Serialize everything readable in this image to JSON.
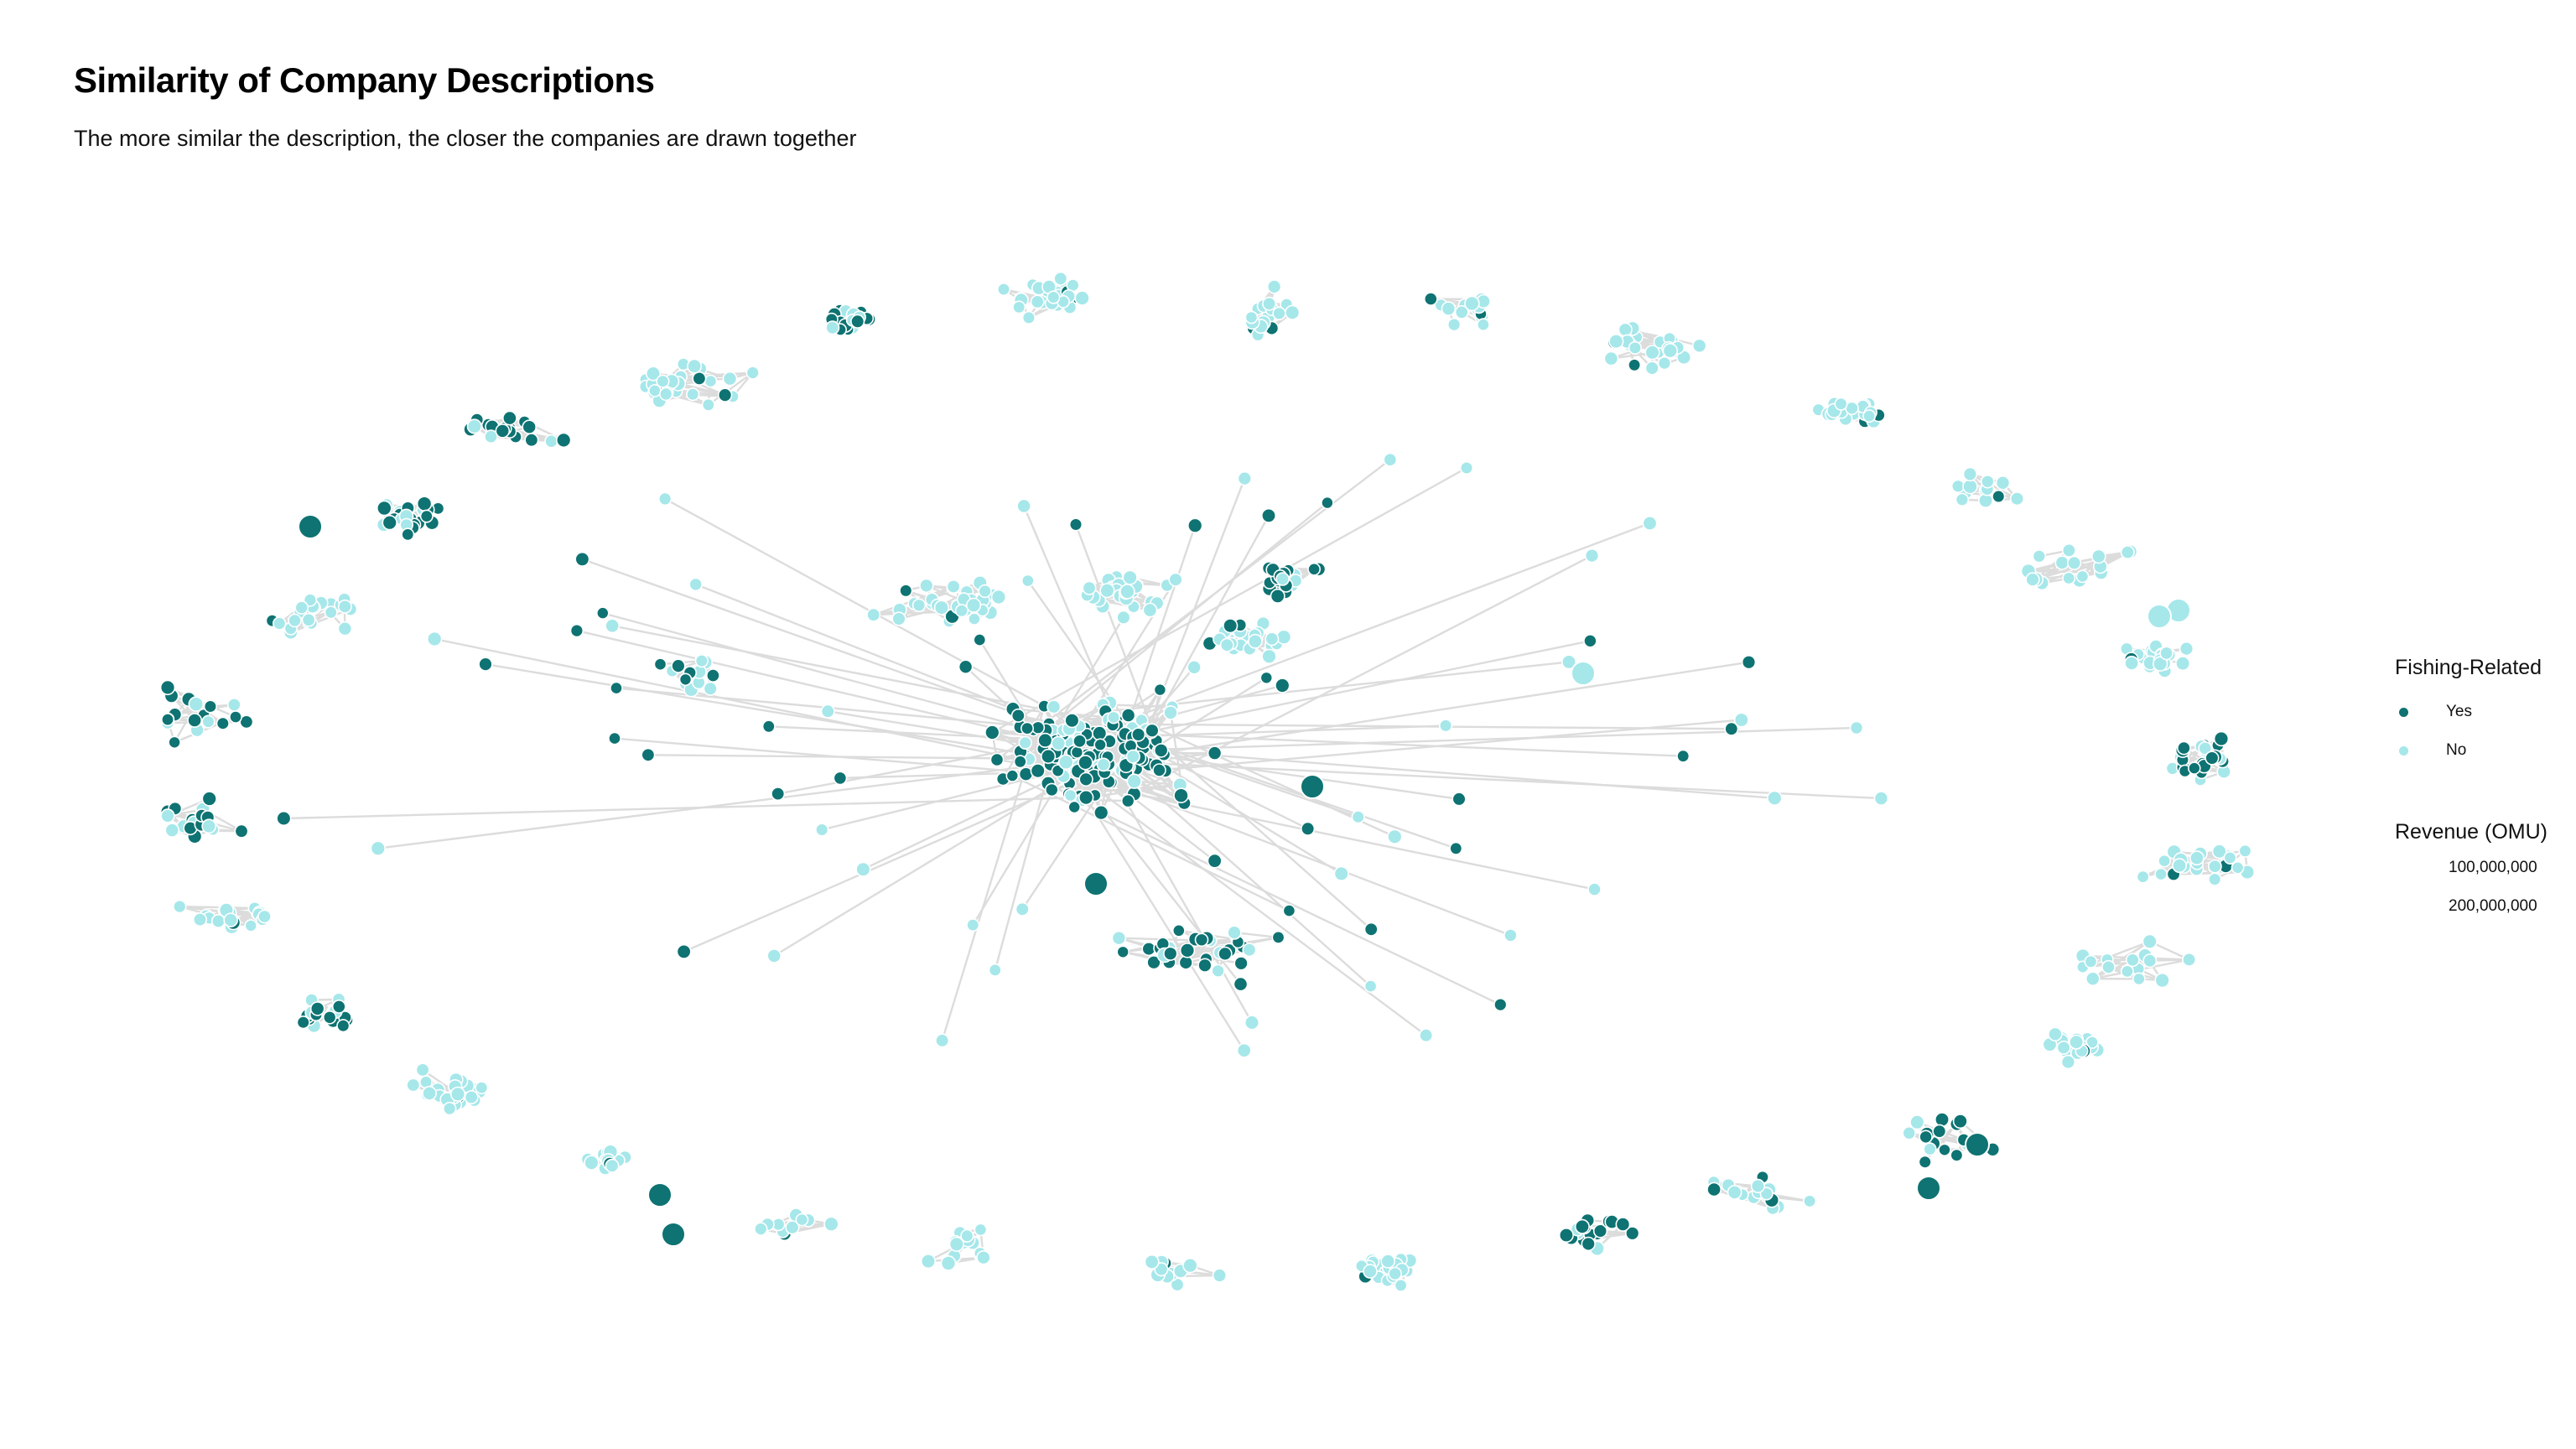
{
  "title": "Similarity of Company Descriptions",
  "subtitle": "The more similar the description, the closer the companies are drawn together",
  "legend": {
    "color_title": "Fishing-Related",
    "color_items": [
      {
        "label": "Yes",
        "color": "#0e7372"
      },
      {
        "label": "No",
        "color": "#a6e7ea"
      }
    ],
    "size_title": "Revenue (OMU)",
    "size_items": [
      {
        "label": "100,000,000"
      },
      {
        "label": "200,000,000"
      }
    ]
  },
  "colors": {
    "edge": "#dcdcdc",
    "node_yes": "#0e7372",
    "node_no": "#a6e7ea",
    "node_stroke": "#ffffff",
    "background": "#ffffff"
  }
}
